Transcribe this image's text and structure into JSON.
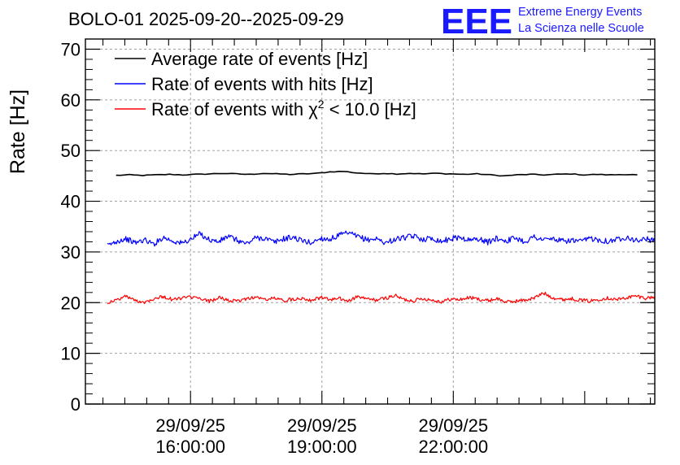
{
  "chart_data": {
    "type": "line",
    "title": "BOLO-01 2025-09-20--2025-09-29",
    "xlabel": "",
    "ylabel": "Rate [Hz]",
    "ylim": [
      0,
      72
    ],
    "yticks": [
      0,
      10,
      20,
      30,
      40,
      50,
      60,
      70
    ],
    "xlim_hours": [
      13.6,
      26.6
    ],
    "xticks": [
      {
        "hour": 16,
        "date": "29/09/25",
        "time": "16:00:00"
      },
      {
        "hour": 19,
        "date": "29/09/25",
        "time": "19:00:00"
      },
      {
        "hour": 22,
        "date": "29/09/25",
        "time": "22:00:00"
      }
    ],
    "grid": true,
    "legend_position": "top-left",
    "series": [
      {
        "name": "Average rate of events [Hz]",
        "color": "#000000",
        "x_start": 14.3,
        "x_end": 26.2,
        "values": [
          45.1,
          45.2,
          45.1,
          45.2,
          45.3,
          45.2,
          45.3,
          45.4,
          45.5,
          45.4,
          45.3,
          45.5,
          45.4,
          45.3,
          45.4,
          45.5,
          45.8,
          45.9,
          45.6,
          45.4,
          45.5,
          45.4,
          45.5,
          45.4,
          45.5,
          45.4,
          45.3,
          45.4,
          45.2,
          45.0,
          45.2,
          45.3,
          45.2,
          45.3,
          45.4,
          45.2,
          45.3,
          45.2,
          45.3,
          45.2
        ]
      },
      {
        "name": "Rate of events with hits [Hz]",
        "color": "#0000ff",
        "x_start": 14.1,
        "x_end": 26.6,
        "values": [
          31.2,
          32.1,
          32.6,
          31.8,
          32.4,
          31.5,
          32.9,
          32.2,
          31.7,
          32.5,
          33.6,
          32.4,
          32.0,
          33.1,
          32.3,
          31.6,
          32.8,
          32.7,
          31.9,
          32.6,
          32.9,
          32.2,
          31.8,
          32.7,
          32.5,
          33.3,
          33.7,
          33.0,
          32.4,
          32.6,
          31.8,
          32.5,
          32.8,
          33.1,
          32.5,
          32.7,
          32.1,
          32.6,
          32.9,
          32.3,
          32.6,
          31.9,
          32.7,
          32.2,
          32.8,
          32.0,
          33.0,
          32.4,
          32.6,
          32.1,
          32.3,
          32.0,
          32.7,
          32.4,
          32.1,
          32.5,
          33.0,
          32.2,
          32.6,
          32.1
        ]
      },
      {
        "name": "Rate of events with χ² < 10.0 [Hz]",
        "color": "#ff0000",
        "x_start": 14.1,
        "x_end": 26.6,
        "values": [
          20.0,
          20.5,
          21.3,
          20.4,
          20.1,
          20.8,
          21.2,
          20.6,
          20.9,
          21.1,
          20.7,
          20.3,
          21.0,
          20.5,
          20.2,
          20.8,
          21.1,
          20.6,
          20.9,
          20.4,
          20.7,
          20.9,
          20.5,
          21.0,
          20.6,
          20.8,
          20.3,
          21.2,
          20.7,
          20.5,
          20.9,
          21.4,
          20.6,
          20.4,
          20.8,
          20.5,
          20.2,
          20.7,
          20.6,
          21.0,
          20.7,
          20.4,
          20.8,
          20.1,
          20.3,
          20.5,
          20.9,
          21.9,
          21.0,
          20.6,
          20.8,
          20.5,
          20.3,
          20.7,
          20.9,
          20.6,
          21.0,
          21.3,
          20.9,
          21.1
        ]
      }
    ],
    "legend": [
      {
        "label": "Average rate of events [Hz]",
        "color": "#000000"
      },
      {
        "label": "Rate of events with hits [Hz]",
        "color": "#0000ff"
      },
      {
        "label_pre": "Rate of events with ",
        "label_chi": "χ",
        "label_sup": "2",
        "label_post": " < 10.0 [Hz]",
        "color": "#ff0000"
      }
    ]
  },
  "logo": {
    "mark": "EEE",
    "line1": "Extreme Energy Events",
    "line2": "La Scienza nelle Scuole",
    "color": "#1a1aff"
  }
}
